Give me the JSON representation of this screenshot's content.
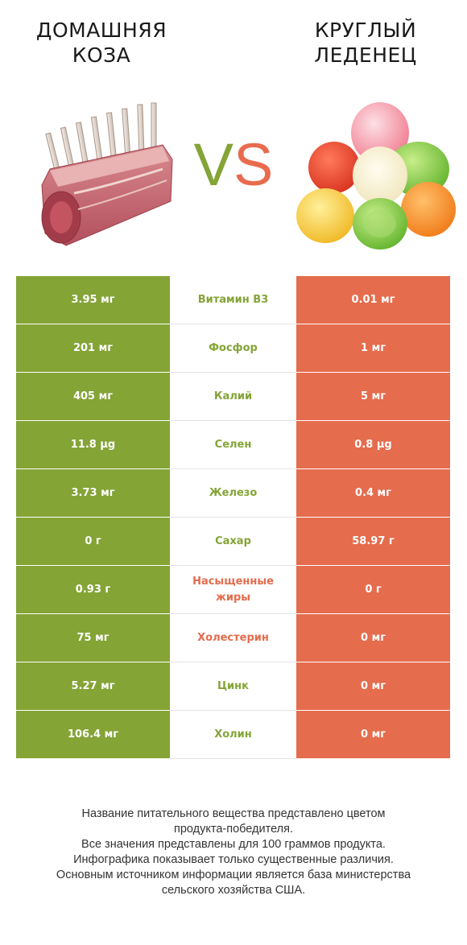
{
  "header": {
    "left_title_line1": "ДОМАШНЯЯ",
    "left_title_line2": "КОЗА",
    "right_title_line1": "КРУГЛЫЙ",
    "right_title_line2": "ЛЕДЕНЕЦ",
    "vs_v": "V",
    "vs_s": "S"
  },
  "colors": {
    "left_winner": "#84a436",
    "right_winner": "#e56c4d"
  },
  "images": {
    "left": "goat-meat-rack-image",
    "right": "gumdrop-candies-image"
  },
  "rows": [
    {
      "name": "Витамин B3",
      "left": "3.95 мг",
      "right": "0.01 мг",
      "winner": "left"
    },
    {
      "name": "Фосфор",
      "left": "201 мг",
      "right": "1 мг",
      "winner": "left"
    },
    {
      "name": "Калий",
      "left": "405 мг",
      "right": "5 мг",
      "winner": "left"
    },
    {
      "name": "Селен",
      "left": "11.8 µg",
      "right": "0.8 µg",
      "winner": "left"
    },
    {
      "name": "Железо",
      "left": "3.73 мг",
      "right": "0.4 мг",
      "winner": "left"
    },
    {
      "name": "Сахар",
      "left": "0 г",
      "right": "58.97 г",
      "winner": "left"
    },
    {
      "name": "Насыщенные жиры",
      "left": "0.93 г",
      "right": "0 г",
      "winner": "right"
    },
    {
      "name": "Холестерин",
      "left": "75 мг",
      "right": "0 мг",
      "winner": "right"
    },
    {
      "name": "Цинк",
      "left": "5.27 мг",
      "right": "0 мг",
      "winner": "left"
    },
    {
      "name": "Холин",
      "left": "106.4 мг",
      "right": "0 мг",
      "winner": "left"
    }
  ],
  "footer": {
    "line1": "Название питательного вещества представлено цветом",
    "line2": "продукта-победителя.",
    "line3": "Все значения представлены для 100 граммов продукта.",
    "line4": "Инфографика показывает только существенные различия.",
    "line5": "Основным источником информации является база министерства",
    "line6": "сельского хозяйства США."
  }
}
